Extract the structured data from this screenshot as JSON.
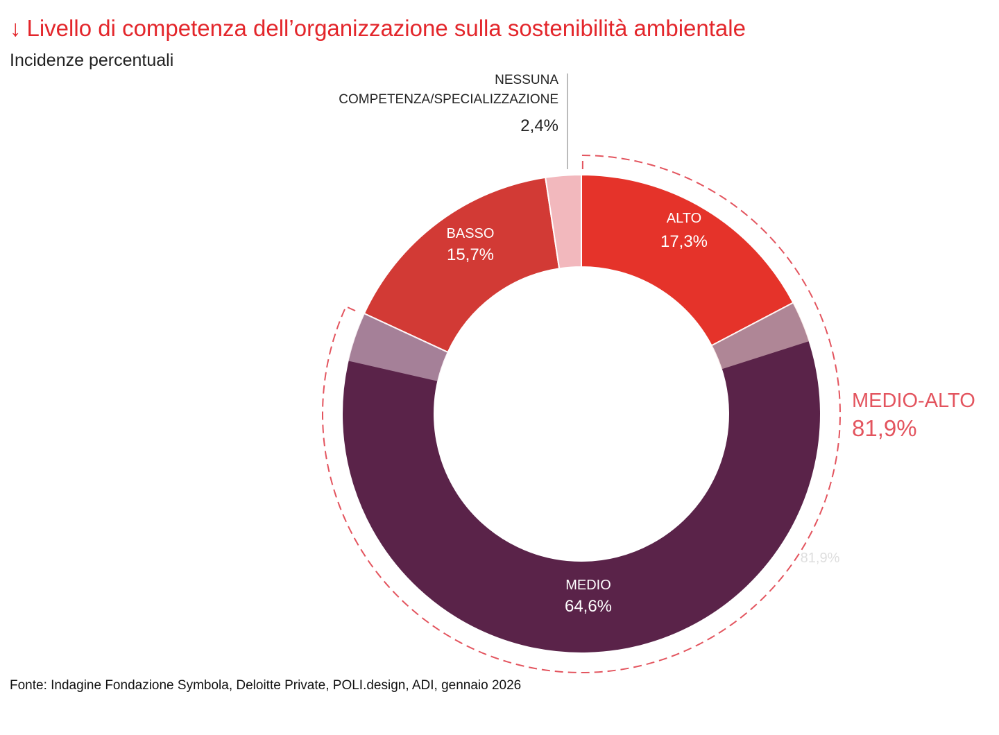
{
  "title": "Livello di competenza dell’organizzazione sulla sostenibilità ambientale",
  "title_arrow": "↓",
  "subtitle": "Incidenze percentuali",
  "source": "Fonte: Indagine Fondazione Symbola, Deloitte Private, POLI.design, ADI, gennaio 2026",
  "chart_data": {
    "type": "pie",
    "variant": "donut",
    "unit": "%",
    "slices": [
      {
        "name": "ALTO",
        "value": 17.3,
        "value_label": "17,3%",
        "color": "#e5332a"
      },
      {
        "name": "MEDIO",
        "value": 64.6,
        "value_label": "64,6%",
        "color": "#5a2349"
      },
      {
        "name": "BASSO",
        "value": 15.7,
        "value_label": "15,7%",
        "color": "#d23a35"
      },
      {
        "name": "NESSUNA COMPETENZA/SPECIALIZZAZIONE",
        "name_lines": [
          "NESSUNA",
          "COMPETENZA/SPECIALIZZAZIONE"
        ],
        "value": 2.4,
        "value_label": "2,4%",
        "color": "#f2b8bd"
      }
    ],
    "group": {
      "name": "MEDIO-ALTO",
      "value": 81.9,
      "value_label": "81,9%",
      "members": [
        "ALTO",
        "MEDIO"
      ],
      "color": "#e3545e"
    },
    "watermark_label": "81,9%"
  }
}
